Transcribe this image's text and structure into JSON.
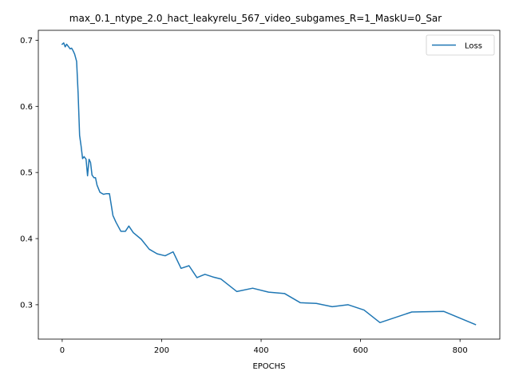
{
  "chart_data": {
    "type": "line",
    "title": "max_0.1_ntype_2.0_hact_leakyrelu_567_video_subgames_R=1_MaskU=0_Sar",
    "xlabel": "EPOCHS",
    "ylabel": "",
    "xlim": [
      -48,
      880
    ],
    "ylim": [
      0.248,
      0.715
    ],
    "xticks": [
      0,
      200,
      400,
      600,
      800
    ],
    "yticks": [
      0.3,
      0.4,
      0.5,
      0.6,
      0.7
    ],
    "xtick_labels": [
      "0",
      "200",
      "400",
      "600",
      "800"
    ],
    "ytick_labels": [
      "0.3",
      "0.4",
      "0.5",
      "0.6",
      "0.7"
    ],
    "grid": false,
    "legend": {
      "position": "top-right",
      "entries": [
        "Loss"
      ]
    },
    "series": [
      {
        "name": "Loss",
        "color": "#1f77b4",
        "x": [
          0,
          3,
          6,
          9,
          12,
          16,
          19,
          22,
          25,
          29,
          32,
          35,
          38,
          41,
          44,
          48,
          51,
          54,
          57,
          60,
          64,
          67,
          70,
          76,
          83,
          89,
          95,
          102,
          108,
          118,
          127,
          134,
          143,
          159,
          175,
          191,
          207,
          223,
          239,
          255,
          271,
          287,
          303,
          319,
          351,
          383,
          415,
          447,
          479,
          511,
          543,
          575,
          607,
          639,
          703,
          767,
          831
        ],
        "y": [
          0.694,
          0.696,
          0.69,
          0.694,
          0.691,
          0.687,
          0.688,
          0.684,
          0.679,
          0.668,
          0.62,
          0.556,
          0.54,
          0.521,
          0.524,
          0.52,
          0.495,
          0.52,
          0.515,
          0.496,
          0.492,
          0.492,
          0.481,
          0.47,
          0.467,
          0.468,
          0.468,
          0.435,
          0.425,
          0.411,
          0.411,
          0.419,
          0.409,
          0.399,
          0.384,
          0.377,
          0.374,
          0.38,
          0.355,
          0.359,
          0.341,
          0.346,
          0.342,
          0.339,
          0.32,
          0.325,
          0.319,
          0.317,
          0.303,
          0.302,
          0.297,
          0.3,
          0.292,
          0.273,
          0.289,
          0.29,
          0.27
        ]
      }
    ]
  }
}
